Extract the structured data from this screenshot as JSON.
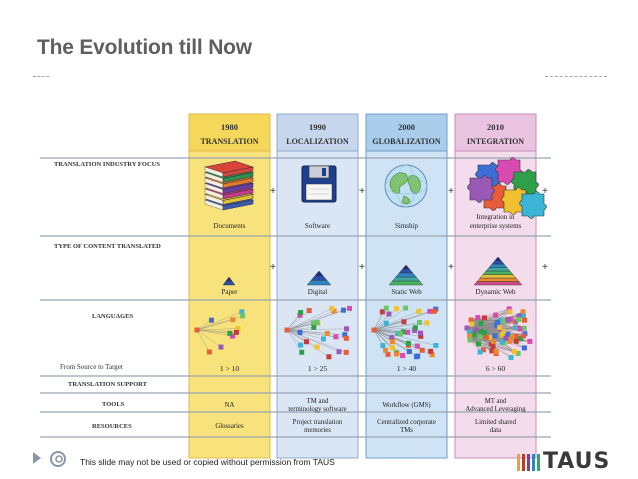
{
  "slide": {
    "title": "The Evolution till Now",
    "footer_text": "This slide may not be used or copied without permission from TAUS",
    "brand": "TAUS",
    "brand_bar_colors": [
      "#e8a33a",
      "#c0392b",
      "#7b3fa0",
      "#2e86c1",
      "#27ae60"
    ]
  },
  "eras": [
    {
      "year": "1980",
      "name": "TRANSLATION",
      "color": "#f7e27c",
      "header": "#f5d85a",
      "outline": "#e3b84a",
      "content_item": "Documents",
      "content_type": "Paper",
      "languages": "1 > 10",
      "tools": "NA",
      "resources": "Glossaries"
    },
    {
      "year": "1990",
      "name": "LOCALIZATION",
      "color": "#dbe6f4",
      "header": "#c6d6ec",
      "outline": "#8eaad0",
      "content_item": "Software",
      "content_type": "Digital",
      "languages": "1 > 25",
      "tools": "TM and terminology software",
      "resources": "Project translation memories"
    },
    {
      "year": "2000",
      "name": "GLOBALIZATION",
      "color": "#cfe3f5",
      "header": "#a9cdeb",
      "outline": "#6f9ec9",
      "content_item": "Simship",
      "content_type": "Static Web",
      "languages": "1 > 40",
      "tools": "Workflow (GMS)",
      "resources": "Centralized corporate TMs"
    },
    {
      "year": "2010",
      "name": "INTEGRATION",
      "color": "#f3dcec",
      "header": "#e9c3df",
      "outline": "#c98cb8",
      "content_item": "Integration in enterprise systems",
      "content_type": "Dynamic Web",
      "languages": "6 > 60",
      "tools": "MT and Advanced Leveraging",
      "resources": "Limited shared data"
    }
  ],
  "rows": {
    "focus": "TRANSLATION INDUSTRY FOCUS",
    "content": "TYPE OF CONTENT TRANSLATED",
    "languages": "LANGUAGES",
    "source_target": "From Source to Target",
    "support": "TRANSLATION SUPPORT",
    "tools": "TOOLS",
    "resources": "RESOURCES"
  },
  "plus_sign": "+",
  "icons": [
    "book-stack-icon",
    "floppy-disk-icon",
    "globe-icon",
    "puzzle-icon"
  ]
}
